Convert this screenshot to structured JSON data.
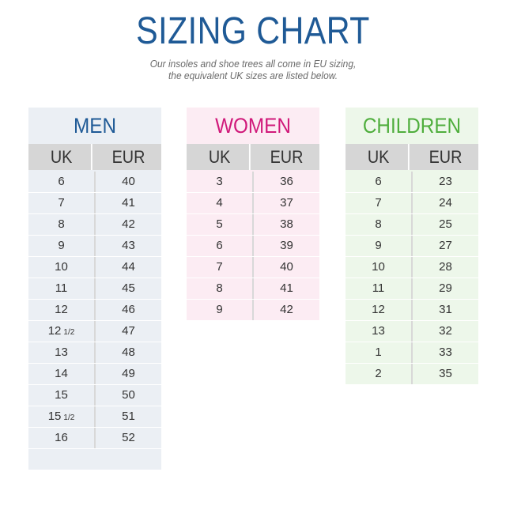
{
  "header": {
    "title": "SIZING CHART",
    "subtitle_line1": "Our insoles and shoe trees all come in EU sizing,",
    "subtitle_line2": "the equivalent UK sizes are listed below."
  },
  "colors": {
    "title_blue": "#1f5a96",
    "men_blue": "#1f5a96",
    "women_pink": "#d0197a",
    "children_green": "#4fae3d"
  },
  "tables": [
    {
      "id": "men",
      "title": "MEN",
      "col_uk": "UK",
      "col_eur": "EUR",
      "rows": [
        {
          "uk": "6",
          "half": "",
          "eur": "40"
        },
        {
          "uk": "7",
          "half": "",
          "eur": "41"
        },
        {
          "uk": "8",
          "half": "",
          "eur": "42"
        },
        {
          "uk": "9",
          "half": "",
          "eur": "43"
        },
        {
          "uk": "10",
          "half": "",
          "eur": "44"
        },
        {
          "uk": "11",
          "half": "",
          "eur": "45"
        },
        {
          "uk": "12",
          "half": "",
          "eur": "46"
        },
        {
          "uk": "12",
          "half": "1/2",
          "eur": "47"
        },
        {
          "uk": "13",
          "half": "",
          "eur": "48"
        },
        {
          "uk": "14",
          "half": "",
          "eur": "49"
        },
        {
          "uk": "15",
          "half": "",
          "eur": "50"
        },
        {
          "uk": "15",
          "half": "1/2",
          "eur": "51"
        },
        {
          "uk": "16",
          "half": "",
          "eur": "52"
        }
      ]
    },
    {
      "id": "women",
      "title": "WOMEN",
      "col_uk": "UK",
      "col_eur": "EUR",
      "rows": [
        {
          "uk": "3",
          "half": "",
          "eur": "36"
        },
        {
          "uk": "4",
          "half": "",
          "eur": "37"
        },
        {
          "uk": "5",
          "half": "",
          "eur": "38"
        },
        {
          "uk": "6",
          "half": "",
          "eur": "39"
        },
        {
          "uk": "7",
          "half": "",
          "eur": "40"
        },
        {
          "uk": "8",
          "half": "",
          "eur": "41"
        },
        {
          "uk": "9",
          "half": "",
          "eur": "42"
        }
      ]
    },
    {
      "id": "children",
      "title": "CHILDREN",
      "col_uk": "UK",
      "col_eur": "EUR",
      "rows": [
        {
          "uk": "6",
          "half": "",
          "eur": "23"
        },
        {
          "uk": "7",
          "half": "",
          "eur": "24"
        },
        {
          "uk": "8",
          "half": "",
          "eur": "25"
        },
        {
          "uk": "9",
          "half": "",
          "eur": "27"
        },
        {
          "uk": "10",
          "half": "",
          "eur": "28"
        },
        {
          "uk": "11",
          "half": "",
          "eur": "29"
        },
        {
          "uk": "12",
          "half": "",
          "eur": "31"
        },
        {
          "uk": "13",
          "half": "",
          "eur": "32"
        },
        {
          "uk": "1",
          "half": "",
          "eur": "33"
        },
        {
          "uk": "2",
          "half": "",
          "eur": "35"
        }
      ]
    }
  ]
}
